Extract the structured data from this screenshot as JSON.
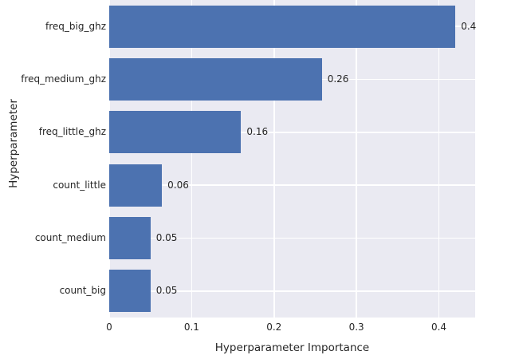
{
  "chart_data": {
    "type": "bar",
    "orientation": "horizontal",
    "title": "",
    "xlabel": "Hyperparameter Importance",
    "ylabel": "Hyperparameter",
    "categories": [
      "freq_big_ghz",
      "freq_medium_ghz",
      "freq_little_ghz",
      "count_little",
      "count_medium",
      "count_big"
    ],
    "values": [
      0.42,
      0.258,
      0.16,
      0.064,
      0.05,
      0.05
    ],
    "value_labels": [
      "0.4",
      "0.26",
      "0.16",
      "0.06",
      "0.05",
      "0.05"
    ],
    "x_ticks": [
      0,
      0.1,
      0.2,
      0.3,
      0.4
    ],
    "x_tick_labels": [
      "0",
      "0.1",
      "0.2",
      "0.3",
      "0.4"
    ],
    "xlim": [
      0,
      0.444
    ],
    "grid": true,
    "legend": "none",
    "colors": {
      "bar": "#4c72b0",
      "plot_background": "#eaeaf2",
      "gridline": "#ffffff",
      "text": "#262626",
      "figure_background": "#ffffff"
    }
  }
}
